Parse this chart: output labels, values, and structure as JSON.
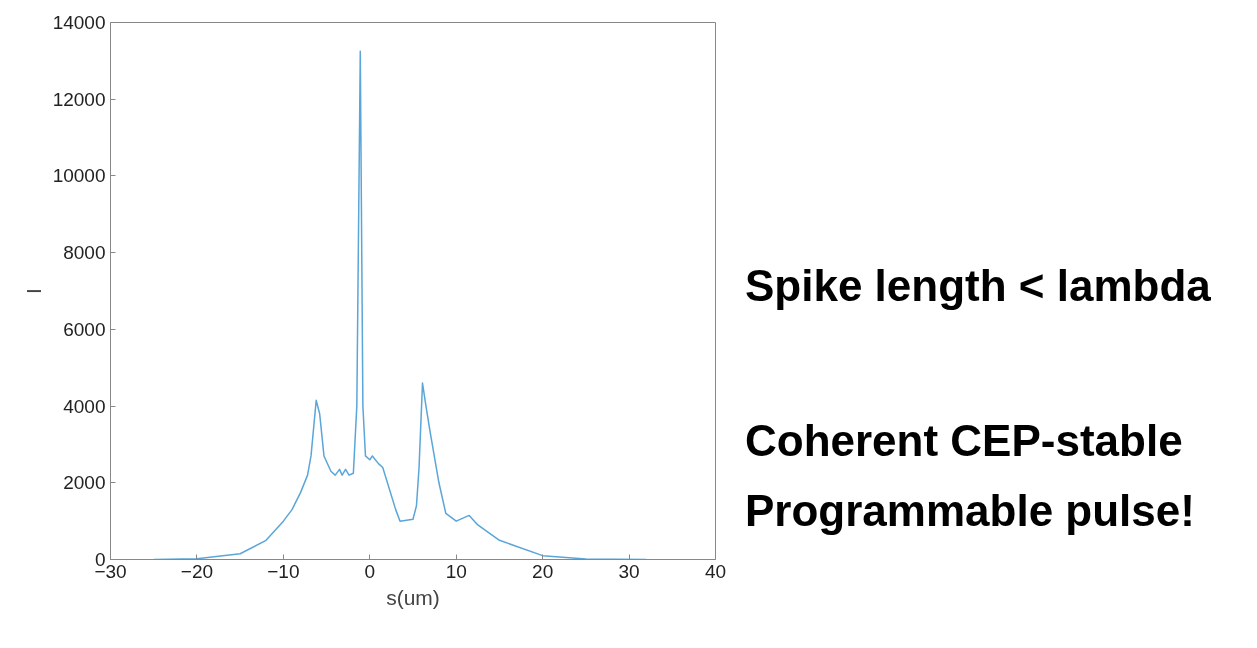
{
  "chart_data": {
    "type": "line",
    "xlabel": "s(um)",
    "ylabel": "I",
    "x": [
      -25,
      -20,
      -15,
      -12,
      -10,
      -9,
      -8,
      -7.2,
      -6.8,
      -6.2,
      -5.8,
      -5.3,
      -4.5,
      -4,
      -3.5,
      -3.2,
      -2.8,
      -2.4,
      -1.9,
      -1.5,
      -1.1,
      -0.8,
      -0.5,
      0,
      0.3,
      1,
      1.5,
      3,
      3.5,
      5,
      5.4,
      5.7,
      6.1,
      6.5,
      7,
      8,
      8.8,
      10,
      11.5,
      12.5,
      15,
      20,
      25,
      32
    ],
    "series": [
      {
        "color": "#5aa6d8",
        "values": [
          0,
          20,
          150,
          500,
          1000,
          1300,
          1750,
          2200,
          2700,
          4150,
          3800,
          2700,
          2300,
          2200,
          2350,
          2200,
          2350,
          2200,
          2250,
          4000,
          13250,
          4000,
          2700,
          2600,
          2700,
          2500,
          2400,
          1300,
          1000,
          1050,
          1400,
          2400,
          4600,
          4000,
          3300,
          2000,
          1200,
          1000,
          1150,
          900,
          500,
          100,
          10,
          0
        ]
      }
    ],
    "xlim": [
      -30,
      40
    ],
    "xticks": [
      -30,
      -20,
      -10,
      0,
      10,
      20,
      30,
      40
    ],
    "ylim": [
      0,
      14000
    ],
    "yticks": [
      0,
      2000,
      4000,
      6000,
      8000,
      10000,
      12000,
      14000
    ],
    "grid": false,
    "marker": "none",
    "line_style": "solid",
    "annotations": [
      "Spike length < lambda",
      "Coherent CEP-stable",
      "Programmable pulse!"
    ]
  }
}
